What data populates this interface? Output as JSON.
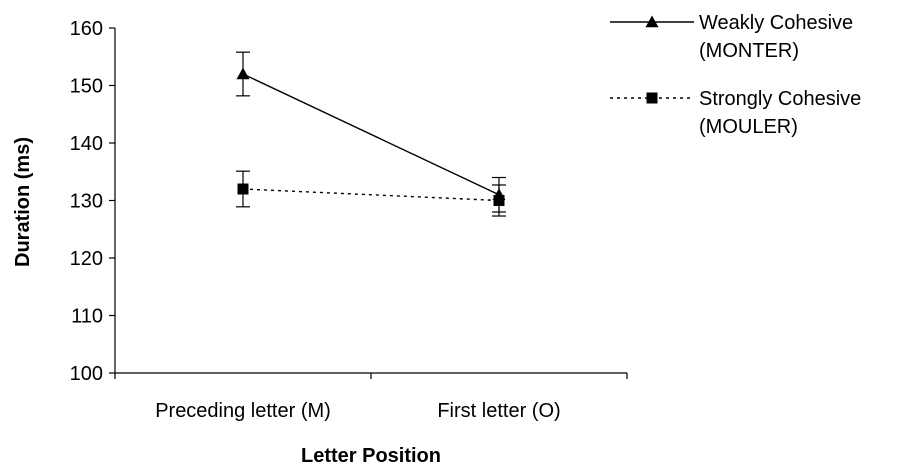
{
  "chart_data": {
    "type": "line",
    "title": "",
    "xlabel": "Letter Position",
    "ylabel": "Duration (ms)",
    "categories": [
      "Preceding letter (M)",
      "First letter (O)"
    ],
    "ylim": [
      100,
      160
    ],
    "yticks": [
      100,
      110,
      120,
      130,
      140,
      150,
      160
    ],
    "grid": false,
    "legend_position": "top-right",
    "series": [
      {
        "name_lines": [
          "Weakly Cohesive",
          "(MONTER)"
        ],
        "values": [
          152,
          131
        ],
        "errors": [
          3.8,
          3.0
        ],
        "marker": "triangle",
        "line_style": "solid",
        "color": "#000000"
      },
      {
        "name_lines": [
          "Strongly Cohesive",
          "(MOULER)"
        ],
        "values": [
          132,
          130
        ],
        "errors": [
          3.1,
          2.7
        ],
        "marker": "square",
        "line_style": "dotted",
        "color": "#000000"
      }
    ]
  }
}
